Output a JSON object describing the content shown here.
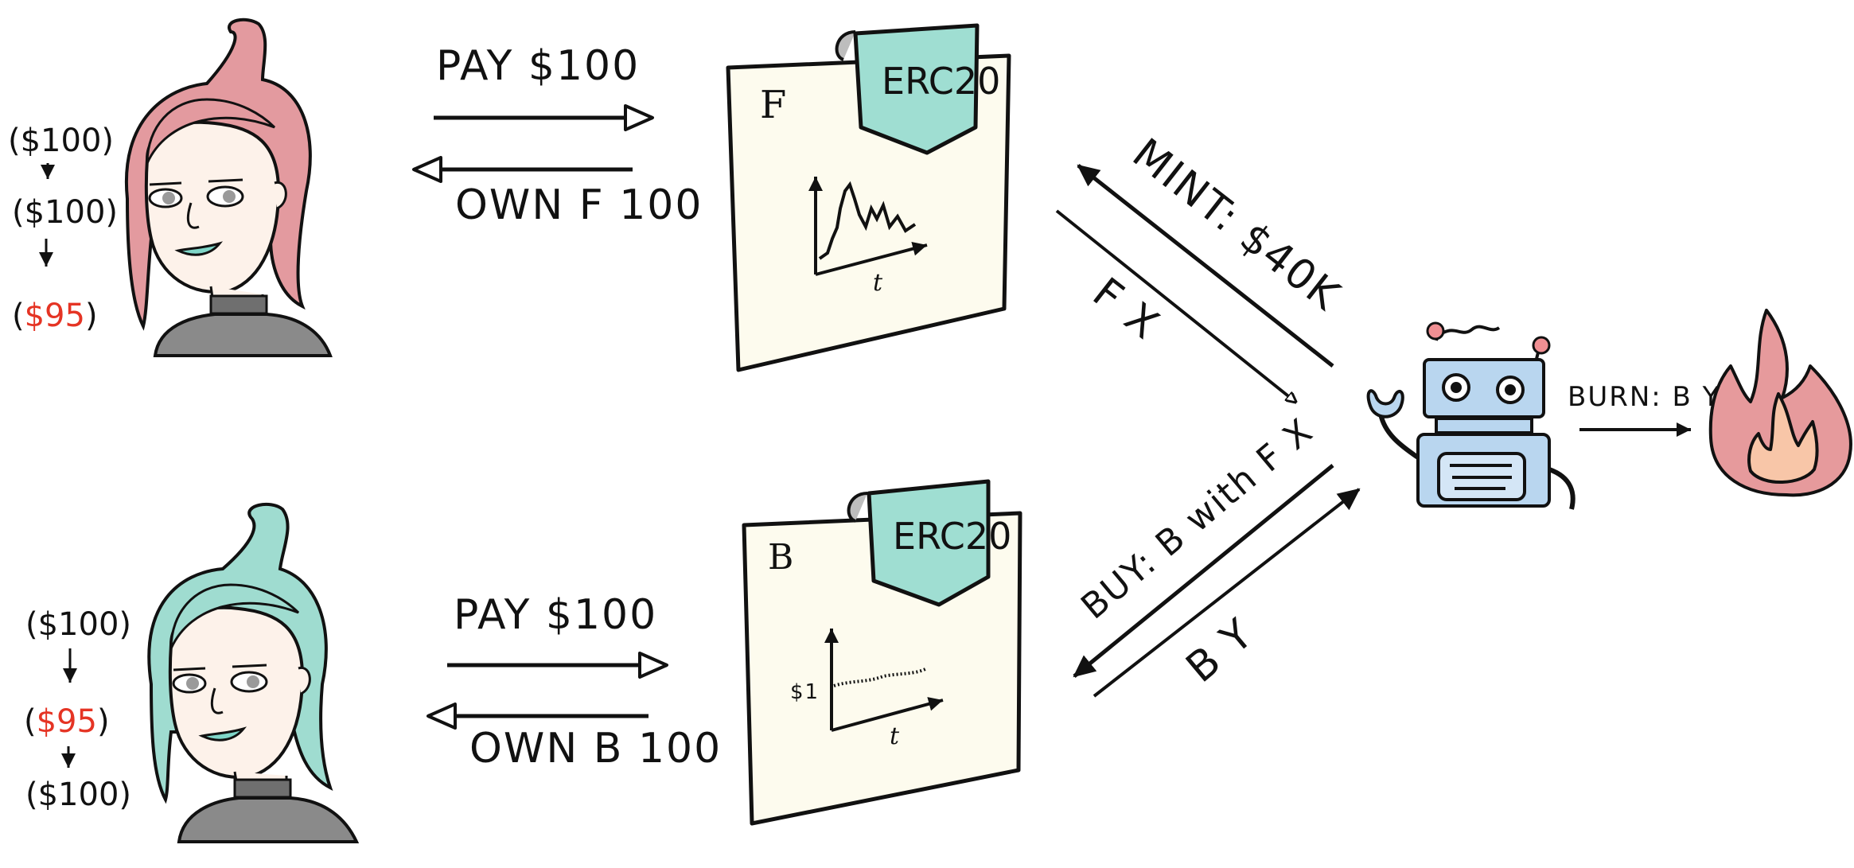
{
  "colors": {
    "ink": "#111111",
    "paper": "#fdfbee",
    "tag_teal": "#9fded2",
    "alice_hair": "#e39a9f",
    "bob_hair": "#9fdcd0",
    "skin": "#fdf2ea",
    "shirt": "#8a8a8a",
    "robot_body": "#b9d6ef",
    "robot_antenna": "#f08f93",
    "fire_outer": "#e69a9c",
    "fire_inner": "#f8c6a8",
    "loss_red": "#e53424"
  },
  "top_user": {
    "balances": [
      "$100",
      "$100",
      "$95"
    ],
    "balance_loss_index": 2,
    "pay_label": "PAY $100",
    "own_label": "OWN F 100"
  },
  "bottom_user": {
    "balances": [
      "$100",
      "$95",
      "$100"
    ],
    "balance_loss_index": 1,
    "pay_label": "PAY $100",
    "own_label": "OWN B 100"
  },
  "top_token": {
    "symbol": "F",
    "tag": "ERC20",
    "axis_label": "t"
  },
  "bottom_token": {
    "symbol": "B",
    "tag": "ERC20",
    "axis_label": "t",
    "price_label": "$1"
  },
  "robot": {
    "mint_label": "MINT: $40K",
    "send_f_label": "F X",
    "buy_label": "BUY: B with F X",
    "get_b_label": "B Y",
    "burn_label": "BURN: B Y"
  }
}
